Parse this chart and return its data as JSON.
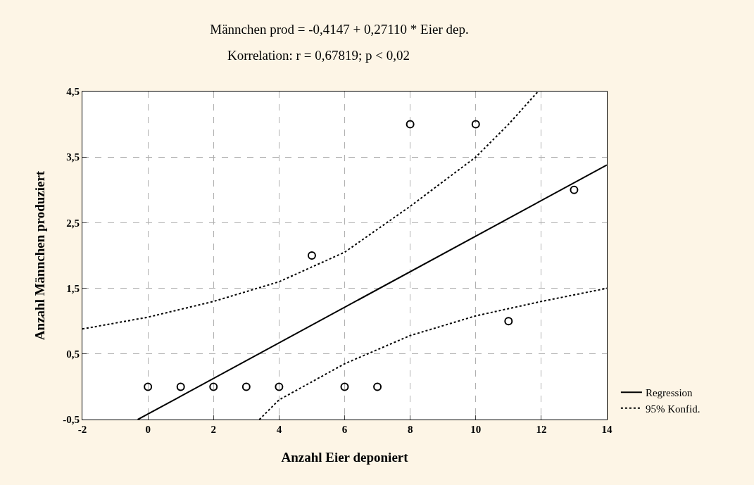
{
  "chart_data": {
    "type": "scatter",
    "title": "Männchen prod = -0,4147 + 0,27110 * Eier dep.",
    "subtitle": "Korrelation: r = 0,67819; p < 0,02",
    "xlabel": "Anzahl Eier deponiert",
    "ylabel": "Anzahl Männchen produziert",
    "x": [
      0,
      1,
      2,
      3,
      4,
      5,
      6,
      7,
      8,
      10,
      11,
      13
    ],
    "series": [
      {
        "type": "scatter",
        "color": "#000000",
        "marker": "circle",
        "values": [
          0,
          0,
          0,
          0,
          0,
          2,
          0,
          0,
          4,
          4,
          1,
          3
        ]
      },
      {
        "type": "line",
        "name": "Regression",
        "color": "#000000",
        "marker": "none",
        "line_style": "solid",
        "x": [
          -0.31,
          14
        ],
        "values": [
          -0.5,
          3.38
        ]
      },
      {
        "type": "line",
        "name": "95% Konfid.",
        "color": "#000000",
        "marker": "none",
        "line_style": "dotted",
        "x": [
          -2,
          0,
          2,
          4,
          6,
          8,
          10,
          11,
          11.9
        ],
        "values": [
          0.88,
          1.06,
          1.3,
          1.6,
          2.05,
          2.75,
          3.5,
          4.0,
          4.5
        ]
      },
      {
        "type": "line",
        "color": "#000000",
        "marker": "none",
        "line_style": "dotted",
        "x": [
          3.4,
          4,
          6,
          8,
          10,
          12,
          14
        ],
        "values": [
          -0.5,
          -0.2,
          0.35,
          0.78,
          1.08,
          1.3,
          1.5
        ]
      }
    ],
    "xlim": [
      -2,
      14
    ],
    "xticks": [
      -2,
      0,
      2,
      4,
      6,
      8,
      10,
      12,
      14
    ],
    "ylim": [
      -0.5,
      4.5
    ],
    "yticks": [
      {
        "value": -0.5,
        "label": "-0,5"
      },
      {
        "value": 0.5,
        "label": "0,5"
      },
      {
        "value": 1.5,
        "label": "1,5"
      },
      {
        "value": 2.5,
        "label": "2,5"
      },
      {
        "value": 3.5,
        "label": "3,5"
      },
      {
        "value": 4.5,
        "label": "4,5"
      }
    ],
    "grid": true,
    "legend": "bottom right"
  }
}
